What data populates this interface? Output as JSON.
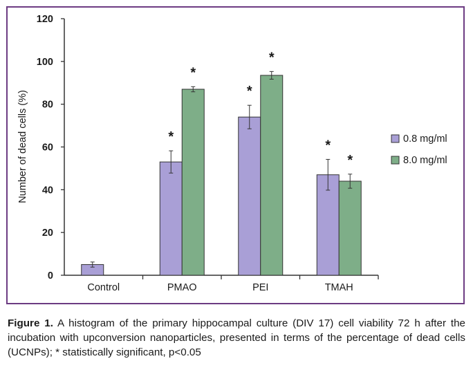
{
  "chart_data": {
    "type": "bar",
    "categories": [
      "Control",
      "PMAO",
      "PEI",
      "TMAH"
    ],
    "series": [
      {
        "name": "0.8 mg/ml",
        "color": "#a99fd6",
        "values": [
          5,
          53,
          74,
          47
        ],
        "errors": [
          1.2,
          5.2,
          5.5,
          7.2
        ],
        "significant": [
          false,
          true,
          true,
          true
        ]
      },
      {
        "name": "8.0 mg/ml",
        "color": "#7eae88",
        "values": [
          null,
          87,
          93.5,
          44
        ],
        "errors": [
          null,
          1.2,
          1.8,
          3.3
        ],
        "significant": [
          false,
          true,
          true,
          true
        ]
      }
    ],
    "ylabel": "Number of dead cells (%)",
    "ylim": [
      0,
      120
    ],
    "yticks": [
      0,
      20,
      40,
      60,
      80,
      100,
      120
    ],
    "significance_marker": "*",
    "legend_position": "right",
    "grid": false
  },
  "caption": {
    "label": "Figure 1.",
    "text": " A histogram of the primary hippocampal culture (DIV 17) cell viability 72 h after the incubation with upconversion nanoparticles, presented in terms of the percentage of dead cells (UCNPs); * statistically significant, p<0.05"
  },
  "colors": {
    "frame": "#6c3b82",
    "axis": "#333333"
  }
}
